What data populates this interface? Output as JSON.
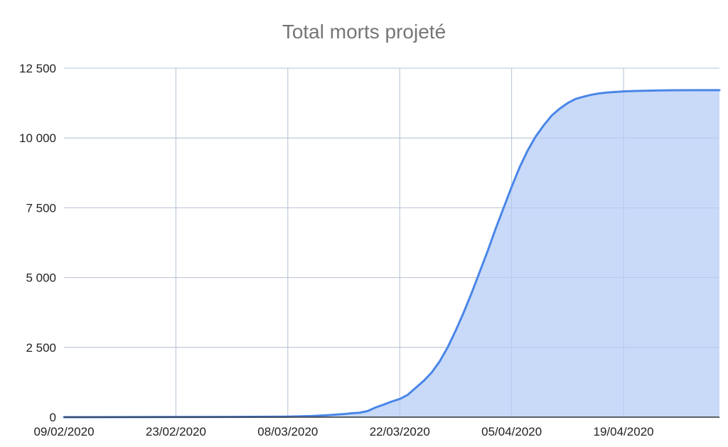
{
  "chart_data": {
    "type": "area",
    "title": "Total morts projeté",
    "xlabel": "",
    "ylabel": "",
    "ylim": [
      0,
      12500
    ],
    "yticks": [
      0,
      2500,
      5000,
      7500,
      10000,
      12500
    ],
    "ytick_labels": [
      "0",
      "2 500",
      "5 000",
      "7 500",
      "10 000",
      "12 500"
    ],
    "xticks": [
      "2020-02-09",
      "2020-02-23",
      "2020-03-08",
      "2020-03-22",
      "2020-04-05",
      "2020-04-19"
    ],
    "xtick_labels": [
      "09/02/2020",
      "23/02/2020",
      "08/03/2020",
      "22/03/2020",
      "05/04/2020",
      "19/04/2020"
    ],
    "xlim": [
      "2020-02-09",
      "2020-05-01"
    ],
    "grid": true,
    "legend": "none",
    "line_color": "#4a86e8",
    "fill_color": "#c9daf8",
    "series": [
      {
        "x": [
          "2020-02-09",
          "2020-02-23",
          "2020-03-01",
          "2020-03-08",
          "2020-03-11",
          "2020-03-13",
          "2020-03-15",
          "2020-03-16",
          "2020-03-17",
          "2020-03-18",
          "2020-03-19",
          "2020-03-20",
          "2020-03-21",
          "2020-03-22",
          "2020-03-23",
          "2020-03-24",
          "2020-03-25",
          "2020-03-26",
          "2020-03-27",
          "2020-03-28",
          "2020-03-29",
          "2020-03-30",
          "2020-03-31",
          "2020-04-01",
          "2020-04-02",
          "2020-04-03",
          "2020-04-04",
          "2020-04-05",
          "2020-04-06",
          "2020-04-07",
          "2020-04-08",
          "2020-04-09",
          "2020-04-10",
          "2020-04-11",
          "2020-04-12",
          "2020-04-13",
          "2020-04-14",
          "2020-04-15",
          "2020-04-16",
          "2020-04-17",
          "2020-04-18",
          "2020-04-19",
          "2020-04-21",
          "2020-04-23",
          "2020-04-25",
          "2020-04-28",
          "2020-05-01"
        ],
        "y": [
          0,
          5,
          10,
          20,
          40,
          70,
          110,
          140,
          160,
          220,
          350,
          450,
          560,
          650,
          800,
          1050,
          1300,
          1600,
          2000,
          2500,
          3100,
          3750,
          4450,
          5200,
          5950,
          6750,
          7500,
          8250,
          8950,
          9550,
          10050,
          10450,
          10800,
          11050,
          11250,
          11400,
          11480,
          11550,
          11600,
          11630,
          11650,
          11670,
          11690,
          11700,
          11710,
          11715,
          11715
        ]
      }
    ]
  }
}
